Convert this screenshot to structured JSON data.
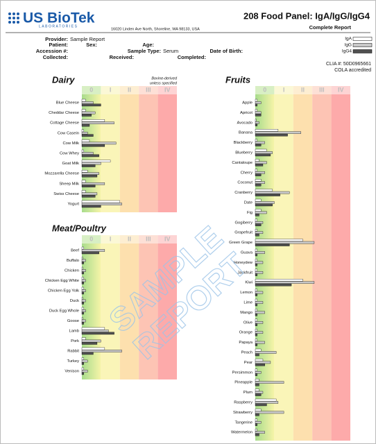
{
  "header": {
    "logo": "US BioTek",
    "logo_sub": "LABORATORIES",
    "address": "16020 Linden Ave North, Shoreline, WA 98133, USA",
    "title": "208 Food Panel: IgA/IgG/IgG4",
    "subtitle": "Complete Report"
  },
  "patient_info": [
    {
      "label": "Provider:",
      "value": "Sample Report"
    },
    {
      "label": "Patient:"
    },
    {
      "label": "Sex:"
    },
    {
      "label": "Age:"
    },
    {
      "label": "Accession #:"
    },
    {
      "label": "Sample Type:",
      "value": "Serum"
    },
    {
      "label": "Date of Birth:"
    },
    {
      "label": "Collected:"
    },
    {
      "label": "Received:"
    },
    {
      "label": "Completed:"
    }
  ],
  "legend": [
    {
      "name": "IgA",
      "color": "#ffffff"
    },
    {
      "name": "IgG",
      "color": "#c8c8c8"
    },
    {
      "name": "IgG4",
      "color": "#505050"
    }
  ],
  "clia": "CLIA #: 50D0965661",
  "accreditation": "COLA accredited",
  "watermark": [
    "SAMPLE",
    "REPORT"
  ],
  "chart_data": [
    {
      "type": "bar",
      "orientation": "horizontal",
      "title": "Dairy",
      "note": [
        "Bovine-derived",
        "unless specified"
      ],
      "xlim": [
        0,
        5
      ],
      "xticks": [
        {
          "value": 0.5,
          "label": "0"
        },
        {
          "value": 1.5,
          "label": "I"
        },
        {
          "value": 2.5,
          "label": "II"
        },
        {
          "value": 3.5,
          "label": "III"
        },
        {
          "value": 4.5,
          "label": "IV"
        }
      ],
      "categories": [
        "Blue Cheese",
        "Cheddar Cheese",
        "Cottage Cheese",
        "Cow Casein",
        "Cow Milk",
        "Cow Whey",
        "Goat Milk",
        "Mozzarella Cheese",
        "Sheep Milk",
        "Swiss Cheese",
        "Yogurt"
      ],
      "series": [
        {
          "values": [
            0.2,
            0.2,
            1.2,
            0.1,
            0.4,
            0.1,
            1.5,
            0.3,
            0.2,
            0.2,
            2.0
          ]
        },
        {
          "values": [
            0.6,
            0.7,
            1.7,
            0.3,
            1.8,
            0.6,
            1.0,
            0.9,
            1.2,
            0.8,
            2.1
          ]
        },
        {
          "values": [
            1.0,
            0.5,
            0.4,
            0.6,
            1.2,
            0.9,
            0.7,
            0.8,
            0.7,
            0.7,
            1.0
          ]
        }
      ]
    },
    {
      "type": "bar",
      "orientation": "horizontal",
      "title": "Meat/Poultry",
      "xlim": [
        0,
        5
      ],
      "xticks": [
        {
          "value": 0.5,
          "label": "0"
        },
        {
          "value": 1.5,
          "label": "I"
        },
        {
          "value": 2.5,
          "label": "II"
        },
        {
          "value": 3.5,
          "label": "III"
        },
        {
          "value": 4.5,
          "label": "IV"
        }
      ],
      "categories": [
        "Beef",
        "Buffalo",
        "Chicken",
        "Chicken Egg White",
        "Chicken Egg Yolk",
        "Duck",
        "Duck Egg Whole",
        "Goose",
        "Lamb",
        "Pork",
        "Rabbit",
        "Turkey",
        "Venison"
      ],
      "series": [
        {
          "values": [
            0.1,
            0.05,
            0.05,
            0.1,
            0.1,
            0.05,
            0.1,
            0.05,
            1.2,
            0.2,
            1.2,
            0.1,
            0.1
          ]
        },
        {
          "values": [
            1.2,
            0.2,
            0.2,
            0.2,
            0.2,
            0.2,
            0.2,
            0.2,
            1.4,
            1.0,
            2.1,
            0.3,
            0.3
          ]
        },
        {
          "values": [
            0.9,
            0.1,
            0.1,
            0.1,
            0.1,
            0.1,
            0.1,
            0.1,
            1.7,
            0.8,
            0.6,
            0.1,
            0.1
          ]
        }
      ]
    },
    {
      "type": "bar",
      "orientation": "horizontal",
      "title": "Fruits",
      "xlim": [
        0,
        5
      ],
      "xticks": [
        {
          "value": 0.5,
          "label": "0"
        },
        {
          "value": 1.5,
          "label": "I"
        },
        {
          "value": 2.5,
          "label": "II"
        },
        {
          "value": 3.5,
          "label": "III"
        },
        {
          "value": 4.5,
          "label": "IV"
        }
      ],
      "categories": [
        "Apple",
        "Apricot",
        "Avocado",
        "Banana",
        "Blackberry",
        "Blueberry",
        "Cantaloupe",
        "Cherry",
        "Coconut",
        "Cranberry",
        "Date",
        "Fig",
        "Gogiberry",
        "Grapefruit",
        "Green Grape",
        "Guava",
        "Honeydew",
        "Jackfruit",
        "Kiwi",
        "Lemon",
        "Lime",
        "Mango",
        "Olive",
        "Orange",
        "Papaya",
        "Peach",
        "Pear",
        "Persimmon",
        "Pineapple",
        "Plum",
        "Raspberry",
        "Strawberry",
        "Tangerine",
        "Watermelon"
      ],
      "series": [
        {
          "values": [
            0.1,
            0.1,
            0.05,
            1.2,
            0.1,
            0.6,
            0.2,
            0.1,
            0.3,
            0.9,
            0.3,
            0.3,
            0.1,
            0.1,
            2.5,
            0.1,
            0.1,
            0.1,
            2.5,
            0.1,
            0.1,
            0.1,
            0.1,
            0.1,
            0.1,
            0.3,
            0.4,
            0.1,
            0.2,
            0.2,
            1.1,
            0.3,
            0.1,
            0.1
          ]
        },
        {
          "values": [
            0.3,
            0.3,
            0.2,
            2.4,
            0.5,
            0.9,
            0.6,
            0.5,
            0.5,
            1.8,
            1.0,
            0.6,
            0.4,
            0.4,
            3.1,
            0.5,
            0.4,
            0.4,
            3.1,
            0.4,
            0.4,
            0.5,
            0.4,
            0.4,
            0.5,
            1.1,
            0.8,
            0.3,
            1.5,
            0.4,
            1.2,
            1.5,
            0.3,
            0.5
          ]
        },
        {
          "values": [
            0.1,
            0.3,
            0.1,
            1.7,
            0.3,
            0.8,
            0.4,
            0.3,
            0.3,
            1.3,
            0.9,
            0.2,
            0.3,
            0.2,
            1.8,
            0.1,
            0.1,
            0.1,
            1.9,
            0.1,
            0.1,
            0.1,
            0.1,
            0.1,
            0.1,
            0.2,
            0.5,
            0.1,
            0.2,
            0.3,
            0.6,
            0.2,
            0.1,
            0.2
          ]
        }
      ]
    }
  ]
}
